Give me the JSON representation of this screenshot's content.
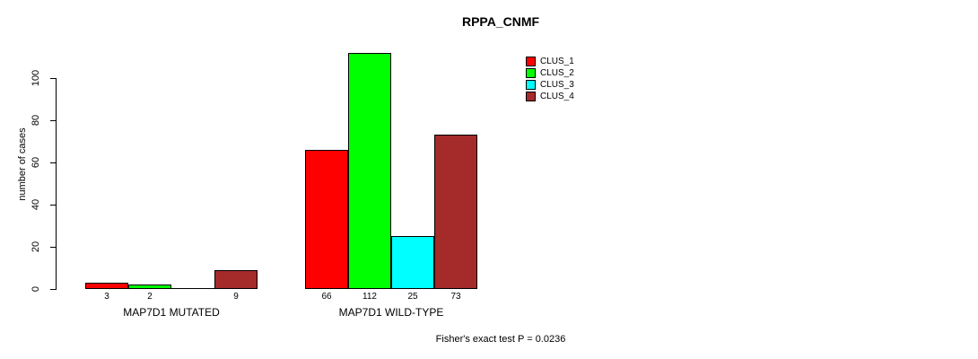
{
  "title": "RPPA_CNMF",
  "ylabel": "number of cases",
  "footnote": "Fisher's exact test P = 0.0236",
  "legend": {
    "items": [
      {
        "label": "CLUS_1",
        "color": "#FF0000"
      },
      {
        "label": "CLUS_2",
        "color": "#00FF00"
      },
      {
        "label": "CLUS_3",
        "color": "#00FFFF"
      },
      {
        "label": "CLUS_4",
        "color": "#A52A2A"
      }
    ]
  },
  "chart_data": {
    "type": "bar",
    "title": "RPPA_CNMF",
    "xlabel": "",
    "ylabel": "number of cases",
    "ylim": [
      0,
      100
    ],
    "yticks": [
      0,
      20,
      40,
      60,
      80,
      100
    ],
    "grid": false,
    "legend_position": "top-right",
    "series": [
      {
        "name": "CLUS_1",
        "color": "#FF0000",
        "values": [
          3,
          66
        ]
      },
      {
        "name": "CLUS_2",
        "color": "#00FF00",
        "values": [
          2,
          112
        ]
      },
      {
        "name": "CLUS_3",
        "color": "#00FFFF",
        "values": [
          0,
          25
        ]
      },
      {
        "name": "CLUS_4",
        "color": "#A52A2A",
        "values": [
          9,
          73
        ]
      }
    ],
    "groups": [
      {
        "label": "MAP7D1 MUTATED",
        "values": [
          3,
          2,
          0,
          9
        ],
        "bar_labels": [
          "3",
          "2",
          "",
          "9"
        ]
      },
      {
        "label": "MAP7D1 WILD-TYPE",
        "values": [
          66,
          112,
          25,
          73
        ],
        "bar_labels": [
          "66",
          "112",
          "25",
          "73"
        ]
      }
    ],
    "annotation": "Fisher's exact test P = 0.0236"
  }
}
